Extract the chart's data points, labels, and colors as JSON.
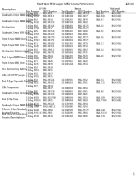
{
  "title": "RadHard MSI Logic SMD Cross Reference",
  "page": "1/2/34",
  "bg_color": "#ffffff",
  "text_color": "#000000",
  "rows": [
    {
      "desc": "Quadruple 2-Input NAND Gate/Inverters",
      "sub": [
        [
          "5 1/4sq. 868",
          "5962-9011",
          "01 1380895",
          "5962-9731/1",
          "54AL 88",
          "5962-9761"
        ],
        [
          "5 1/4sq. 9654",
          "5962-9011/1",
          "01 1388388",
          "5962-9637",
          "54AL 960",
          "5962-9960"
        ]
      ]
    },
    {
      "desc": "Quadruple 2-Input NAND Gates",
      "sub": [
        [
          "5 1/4sq. 862",
          "5962-9914",
          "01 2390285",
          "5962-9979",
          "54AL 87",
          "5962-9762"
        ],
        [
          "5 1/4sq. 9634",
          "5962-9911/3",
          "01 3980398",
          "5962-9984",
          "",
          ""
        ]
      ]
    },
    {
      "desc": "Hex Inverters",
      "sub": [
        [
          "5 1/4sq. 864",
          "5962-9911/4",
          "01 3690485",
          "5962-97171",
          "54AL 04",
          "5962-9768"
        ],
        [
          "5 1/4sq. 9764",
          "5962-9917",
          "01 3660688",
          "5962-97171",
          "",
          ""
        ]
      ]
    },
    {
      "desc": "Quadruple 2-Input NOR Gates",
      "sub": [
        [
          "5 1/4sq. 869",
          "5962-9911/6",
          "01 3890485",
          "5962-9388",
          "54AL 02",
          "5962-9761"
        ],
        [
          "5 1/4sq. 9758",
          "5962-9911/3",
          "01 3090646",
          "5962-9066",
          "",
          ""
        ]
      ]
    },
    {
      "desc": "Triple 3-Input NAND Gates",
      "sub": [
        [
          "5 1/4sq. 810",
          "5962-9917/0",
          "01 3690395",
          "5962-9737/",
          "54AL 10",
          "5962-9761"
        ],
        [
          "5 1/4sq. 9761/",
          "5962-8917/1",
          "01 3810896",
          "5962-9737/",
          "",
          ""
        ]
      ]
    },
    {
      "desc": "Triple 3-Input NOR Gates",
      "sub": [
        [
          "5 1/4sq. 811",
          "5962-9924/2",
          "01 3024385",
          "5962-9729",
          "54AL 11",
          "5962-9764"
        ],
        [
          "5 1/4sq. 9242",
          "5962-9931/1",
          "01 3010688",
          "5962-9714",
          "",
          ""
        ]
      ]
    },
    {
      "desc": "Hex Inverter, Schmitt trigger",
      "sub": [
        [
          "5 1/4sq. 814",
          "5962-9901/1",
          "01 3096885",
          "5962-9963",
          "54AL 14",
          "5962-9764"
        ],
        [
          "5 1/4sq. 9764/",
          "5962-9927/1",
          "01 3810896",
          "5962-9715",
          "",
          ""
        ]
      ]
    },
    {
      "desc": "Dual 4-Input NAND Gates",
      "sub": [
        [
          "5 1/4sq. 820",
          "5962-9924",
          "01 3024385",
          "5962-9729",
          "54AL 20",
          "5962-9765"
        ],
        [
          "5 1/4sq. 9204",
          "5962-9937",
          "01 3010896",
          "5962-9714",
          "",
          ""
        ]
      ]
    },
    {
      "desc": "Triple 3-Input AND Gates",
      "sub": [
        [
          "5 1/4sq. 811",
          "5962-9849",
          "01 3027685",
          "5962-9940",
          "",
          ""
        ],
        [
          "5 1/4sq. 9271",
          "5962-9879",
          "01 3217468",
          "5962-9714",
          "",
          ""
        ]
      ]
    },
    {
      "desc": "Hex, Noninverting Buffers",
      "sub": [
        [
          "5 1/4sq. 834",
          "5962-9618",
          "",
          "",
          "",
          ""
        ],
        [
          "5 1/4sq. 9016",
          "5962-9611",
          "",
          "",
          "",
          ""
        ]
      ]
    },
    {
      "desc": "4-Bit, S/P-S/P-P/P Jumper",
      "sub": [
        [
          "5 1/4sq. 874",
          "5962-9917",
          "",
          "",
          "",
          ""
        ],
        [
          "5 1/4sq. 9754",
          "5962-9611",
          "",
          "",
          "",
          ""
        ]
      ]
    },
    {
      "desc": "Dual D-Type Flops with Clear & Preset",
      "sub": [
        [
          "5 1/4sq. 873",
          "5962-9911/4",
          "01 3390585",
          "5962-9762",
          "54AL 74",
          "5962-9824"
        ],
        [
          "5 1/4sq. 9421",
          "5962-9931/1",
          "01 3090416",
          "5962-9761",
          "54AL 721",
          "5962-9274"
        ]
      ]
    },
    {
      "desc": "4-Bit Comparators",
      "sub": [
        [
          "5 1/4sq. 887",
          "5962-9914",
          "",
          "",
          "",
          ""
        ],
        [
          "",
          "5962-9917",
          "01 3880898",
          "5962-9954",
          "",
          ""
        ]
      ]
    },
    {
      "desc": "Quadruple 2-Input Exclusive OR Gates",
      "sub": [
        [
          "5 1/4sq. 886",
          "5962-9911/8",
          "01 3890685",
          "5962-9761",
          "54AL 86",
          "5962-9914"
        ],
        [
          "5 1/4sq. 9786",
          "5962-9911/9",
          "01 3880898",
          "5962-9961",
          "",
          ""
        ]
      ]
    },
    {
      "desc": "Dual JK Flip-Flops",
      "sub": [
        [
          "5 1/4sq. 8109",
          "5962-9027085",
          "01 3889096",
          "5962-9754",
          "54AL 109",
          "5962-9764"
        ],
        [
          "5 1/4sq. 9102/9",
          "5962-9641",
          "01 3880898",
          "5962-9984",
          "54AL 719/9",
          "5962-9284"
        ]
      ]
    },
    {
      "desc": "Quadruple 2-Input NAND Schmitt Triggers",
      "sub": [
        [
          "5 1/4sq. 8132",
          "5962-9611/5",
          "01 3139985",
          "5962-9394",
          "",
          ""
        ],
        [
          "5 1/4sq. 9132",
          "5962-9641 2",
          "01 3018006",
          "5962-9194",
          "",
          ""
        ]
      ]
    },
    {
      "desc": "9-Line to 4-Line Standard\nEncoders/Decoders",
      "sub": [
        [
          "5 1/4sq. 8148",
          "5962-9904",
          "01 3928985",
          "5962-97777",
          "54AL 148",
          "5962-9762"
        ],
        [
          "5 1/4sq. 9761 8/1",
          "5962-9401",
          "01 3018006",
          "5962-9964",
          "54AL 921 B",
          "5962-9764"
        ]
      ]
    },
    {
      "desc": "Dual 16-to-1 16-and 4-Line\nDecoders/Demultiplexers",
      "sub": [
        [
          "5 1/4sq. 8139",
          "5962-9418",
          "01 3298485",
          "5962-9989",
          "54AL 139",
          "5962-9762"
        ]
      ]
    }
  ]
}
